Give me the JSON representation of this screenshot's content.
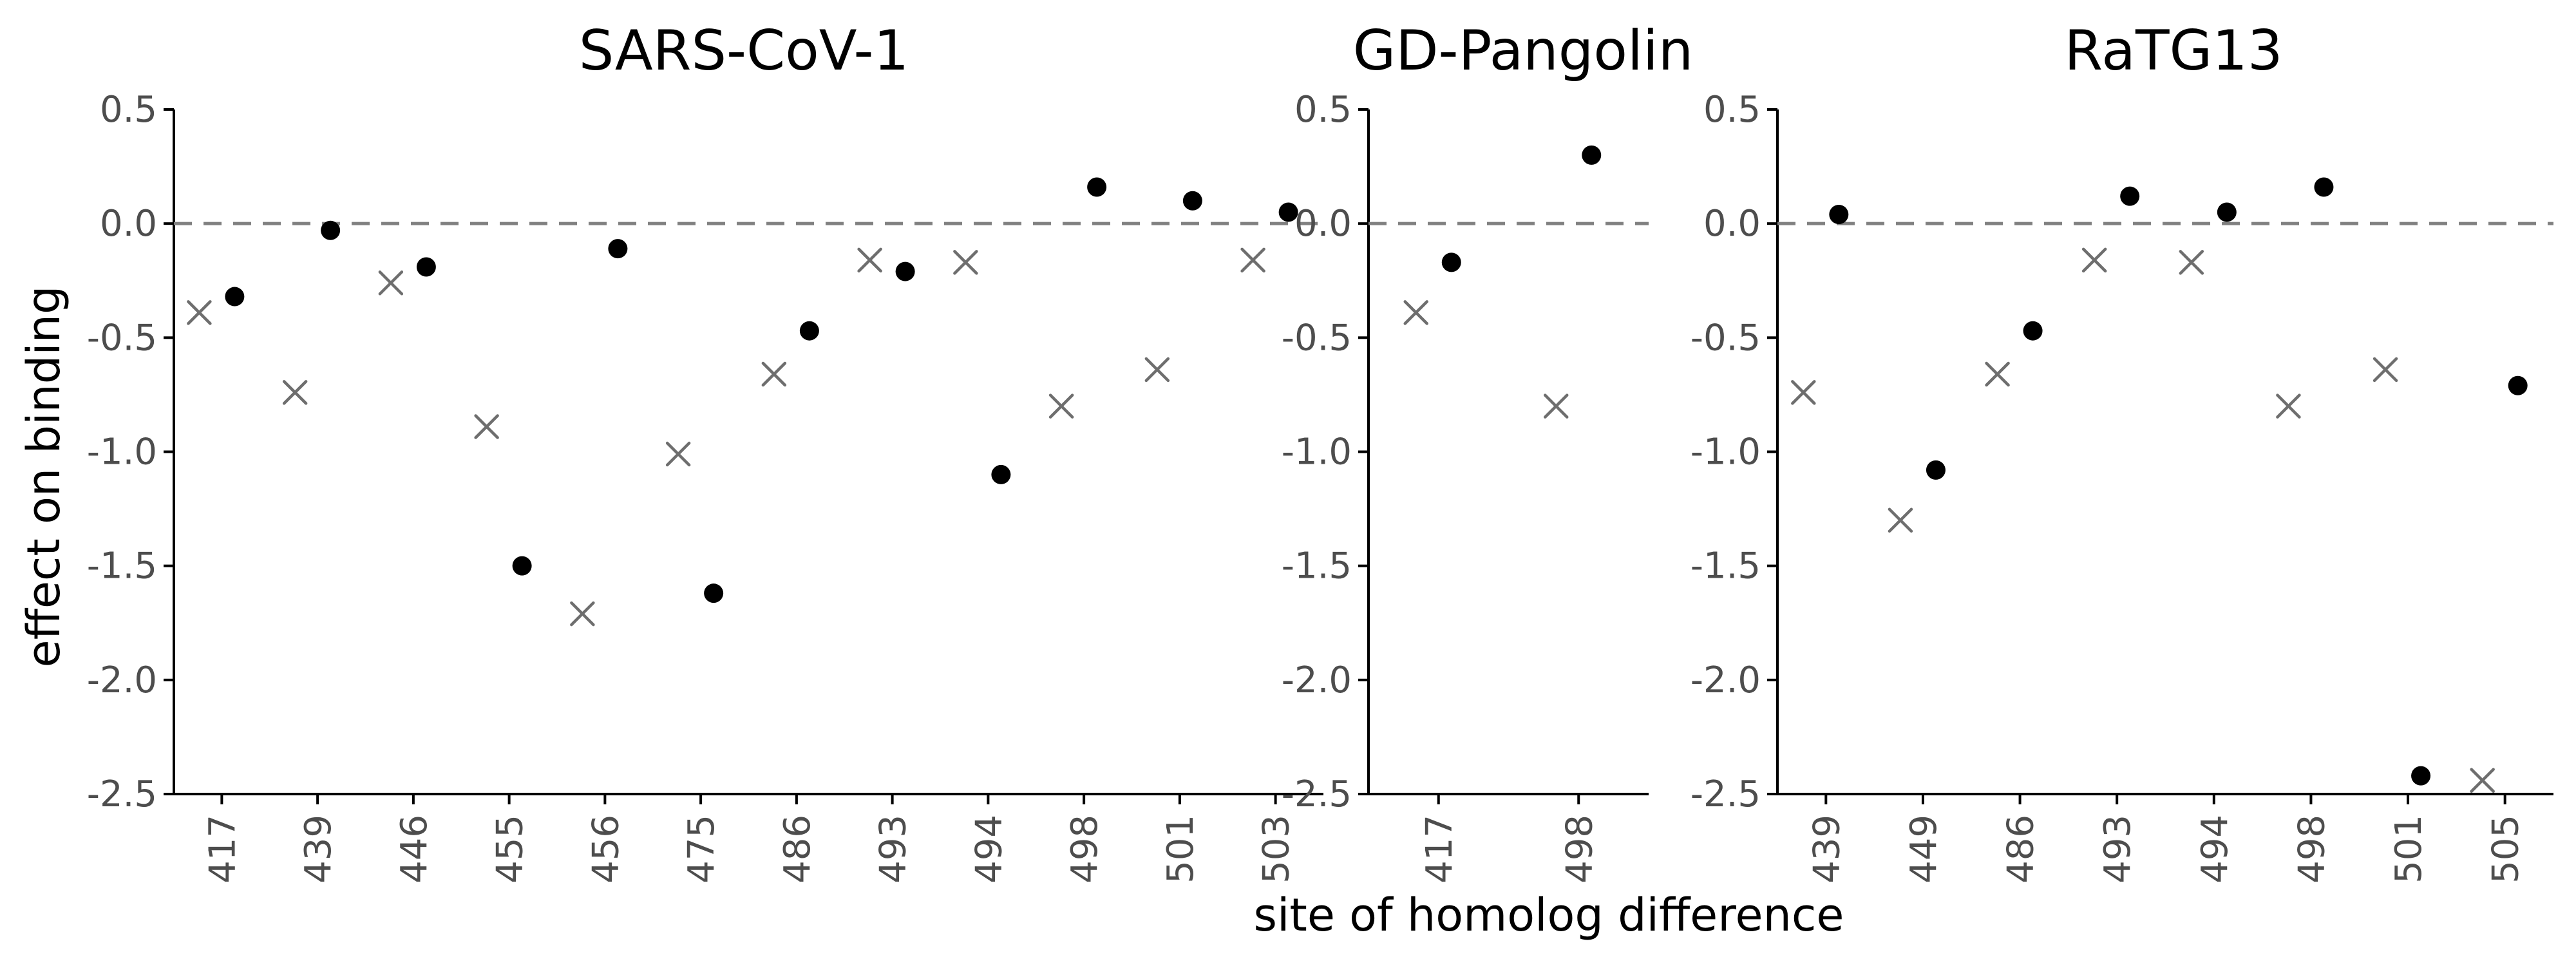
{
  "chart_data": {
    "type": "scatter",
    "xlabel": "site of homolog difference",
    "ylabel": "effect on binding",
    "ylim": [
      -2.5,
      0.5
    ],
    "yticks": [
      "0.5",
      "0.0",
      "-0.5",
      "-1.0",
      "-1.5",
      "-2.0",
      "-2.5"
    ],
    "reference_line": {
      "y": 0,
      "style": "dashed"
    },
    "marker_styles": {
      "filled-circle": "#000000",
      "x-cross": "#6e6e6e"
    },
    "grid": false,
    "legend": "none",
    "panels": [
      {
        "title": "SARS-CoV-1",
        "categories": [
          "417",
          "439",
          "446",
          "455",
          "456",
          "475",
          "486",
          "493",
          "494",
          "498",
          "501",
          "503"
        ],
        "points": [
          {
            "site": "417",
            "marker": "x-cross",
            "y": -0.39
          },
          {
            "site": "417",
            "marker": "filled-circle",
            "y": -0.32
          },
          {
            "site": "439",
            "marker": "x-cross",
            "y": -0.74
          },
          {
            "site": "439",
            "marker": "filled-circle",
            "y": -0.03
          },
          {
            "site": "446",
            "marker": "x-cross",
            "y": -0.26
          },
          {
            "site": "446",
            "marker": "filled-circle",
            "y": -0.19
          },
          {
            "site": "455",
            "marker": "x-cross",
            "y": -0.89
          },
          {
            "site": "455",
            "marker": "filled-circle",
            "y": -1.5
          },
          {
            "site": "456",
            "marker": "x-cross",
            "y": -1.71
          },
          {
            "site": "456",
            "marker": "filled-circle",
            "y": -0.11
          },
          {
            "site": "475",
            "marker": "x-cross",
            "y": -1.01
          },
          {
            "site": "475",
            "marker": "filled-circle",
            "y": -1.62
          },
          {
            "site": "486",
            "marker": "x-cross",
            "y": -0.66
          },
          {
            "site": "486",
            "marker": "filled-circle",
            "y": -0.47
          },
          {
            "site": "493",
            "marker": "x-cross",
            "y": -0.16
          },
          {
            "site": "493",
            "marker": "filled-circle",
            "y": -0.21
          },
          {
            "site": "494",
            "marker": "x-cross",
            "y": -0.17
          },
          {
            "site": "494",
            "marker": "filled-circle",
            "y": -1.1
          },
          {
            "site": "498",
            "marker": "x-cross",
            "y": -0.8
          },
          {
            "site": "498",
            "marker": "filled-circle",
            "y": 0.16
          },
          {
            "site": "501",
            "marker": "x-cross",
            "y": -0.64
          },
          {
            "site": "501",
            "marker": "filled-circle",
            "y": 0.1
          },
          {
            "site": "503",
            "marker": "x-cross",
            "y": -0.16
          },
          {
            "site": "503",
            "marker": "filled-circle",
            "y": 0.05
          }
        ]
      },
      {
        "title": "GD-Pangolin",
        "categories": [
          "417",
          "498"
        ],
        "points": [
          {
            "site": "417",
            "marker": "x-cross",
            "y": -0.39
          },
          {
            "site": "417",
            "marker": "filled-circle",
            "y": -0.17
          },
          {
            "site": "498",
            "marker": "x-cross",
            "y": -0.8
          },
          {
            "site": "498",
            "marker": "filled-circle",
            "y": 0.3
          }
        ]
      },
      {
        "title": "RaTG13",
        "categories": [
          "439",
          "449",
          "486",
          "493",
          "494",
          "498",
          "501",
          "505"
        ],
        "points": [
          {
            "site": "439",
            "marker": "x-cross",
            "y": -0.74
          },
          {
            "site": "439",
            "marker": "filled-circle",
            "y": 0.04
          },
          {
            "site": "449",
            "marker": "x-cross",
            "y": -1.3
          },
          {
            "site": "449",
            "marker": "filled-circle",
            "y": -1.08
          },
          {
            "site": "486",
            "marker": "x-cross",
            "y": -0.66
          },
          {
            "site": "486",
            "marker": "filled-circle",
            "y": -0.47
          },
          {
            "site": "493",
            "marker": "x-cross",
            "y": -0.16
          },
          {
            "site": "493",
            "marker": "filled-circle",
            "y": 0.12
          },
          {
            "site": "494",
            "marker": "x-cross",
            "y": -0.17
          },
          {
            "site": "494",
            "marker": "filled-circle",
            "y": 0.05
          },
          {
            "site": "498",
            "marker": "x-cross",
            "y": -0.8
          },
          {
            "site": "498",
            "marker": "filled-circle",
            "y": 0.16
          },
          {
            "site": "501",
            "marker": "x-cross",
            "y": -0.64
          },
          {
            "site": "501",
            "marker": "filled-circle",
            "y": -2.42
          },
          {
            "site": "505",
            "marker": "x-cross",
            "y": -2.44
          },
          {
            "site": "505",
            "marker": "filled-circle",
            "y": -0.71
          }
        ]
      }
    ]
  }
}
